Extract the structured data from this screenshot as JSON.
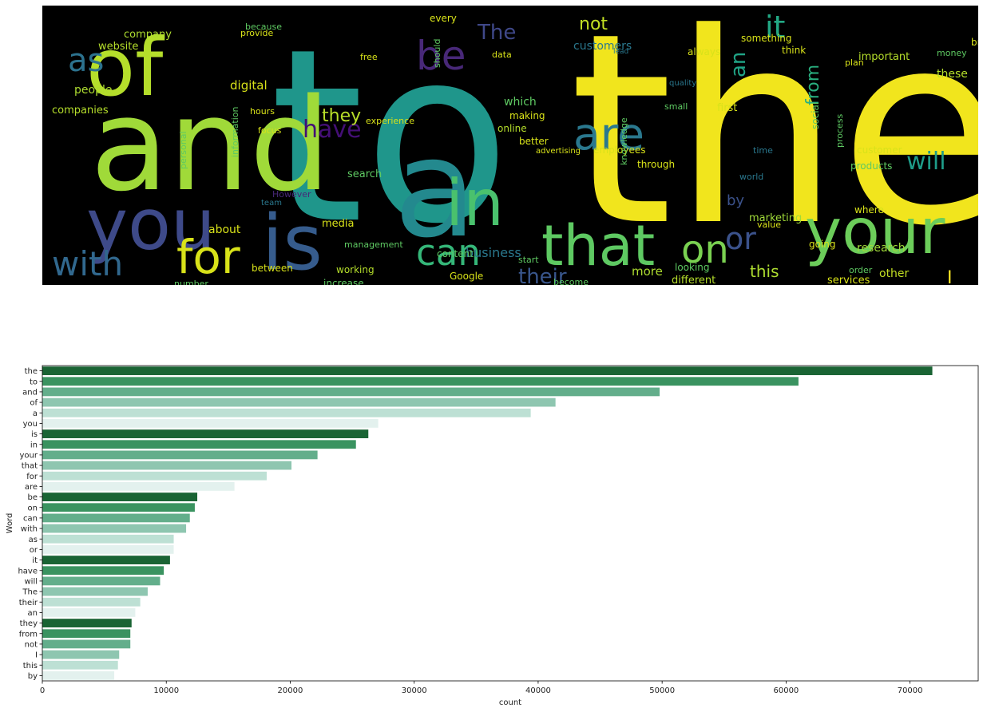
{
  "chart_data": [
    {
      "type": "wordcloud",
      "background": "#000000",
      "colormap": [
        "#440154",
        "#3b528b",
        "#21918c",
        "#5ec962",
        "#fde725"
      ],
      "words": [
        {
          "text": "the",
          "weight": 71800,
          "color": "#f1e51d"
        },
        {
          "text": "to",
          "weight": 61000,
          "color": "#1f968b"
        },
        {
          "text": "and",
          "weight": 49800,
          "color": "#a0da39"
        },
        {
          "text": "of",
          "weight": 41400,
          "color": "#b5de2b"
        },
        {
          "text": "a",
          "weight": 39400,
          "color": "#23898e"
        },
        {
          "text": "you",
          "weight": 27100,
          "color": "#3e4a89"
        },
        {
          "text": "is",
          "weight": 26300,
          "color": "#365c8d"
        },
        {
          "text": "in",
          "weight": 25300,
          "color": "#4ac16d"
        },
        {
          "text": "your",
          "weight": 22200,
          "color": "#6ccd5a"
        },
        {
          "text": "that",
          "weight": 20100,
          "color": "#5ec962"
        },
        {
          "text": "for",
          "weight": 18100,
          "color": "#d8e219"
        },
        {
          "text": "are",
          "weight": 15500,
          "color": "#2a788e"
        },
        {
          "text": "be",
          "weight": 12500,
          "color": "#482878"
        },
        {
          "text": "on",
          "weight": 12300,
          "color": "#7ad151"
        },
        {
          "text": "can",
          "weight": 11900,
          "color": "#35b779"
        },
        {
          "text": "with",
          "weight": 11600,
          "color": "#31688e"
        },
        {
          "text": "as",
          "weight": 10600,
          "color": "#2c728e"
        },
        {
          "text": "or",
          "weight": 10600,
          "color": "#3b528b"
        },
        {
          "text": "it",
          "weight": 10300,
          "color": "#22a884"
        },
        {
          "text": "have",
          "weight": 9800,
          "color": "#440f76"
        },
        {
          "text": "will",
          "weight": 9500,
          "color": "#1e9c89"
        },
        {
          "text": "The",
          "weight": 8500,
          "color": "#3f4889"
        },
        {
          "text": "their",
          "weight": 7900,
          "color": "#39568c"
        },
        {
          "text": "an",
          "weight": 7500,
          "color": "#20a486"
        },
        {
          "text": "they",
          "weight": 7200,
          "color": "#b8de29"
        },
        {
          "text": "from",
          "weight": 7100,
          "color": "#29af7f"
        },
        {
          "text": "not",
          "weight": 7100,
          "color": "#c2df23"
        },
        {
          "text": "I",
          "weight": 6200,
          "color": "#fde725"
        },
        {
          "text": "this",
          "weight": 6100,
          "color": "#addc30"
        },
        {
          "text": "by",
          "weight": 5800,
          "color": "#3b528b"
        },
        {
          "text": "business",
          "weight": 4400,
          "color": "#2a788e"
        },
        {
          "text": "which",
          "weight": 4200,
          "color": "#5ec962"
        },
        {
          "text": "these",
          "weight": 4100,
          "color": "#b5de2b"
        },
        {
          "text": "about",
          "weight": 4000,
          "color": "#d8e219"
        },
        {
          "text": "more",
          "weight": 3900,
          "color": "#addc30"
        },
        {
          "text": "marketing",
          "weight": 3800,
          "color": "#a0da39"
        },
        {
          "text": "people",
          "weight": 3700,
          "color": "#addc30"
        },
        {
          "text": "other",
          "weight": 3600,
          "color": "#c2df23"
        },
        {
          "text": "companies",
          "weight": 3500,
          "color": "#b5de2b"
        },
        {
          "text": "customers",
          "weight": 3400,
          "color": "#2a788e"
        },
        {
          "text": "digital",
          "weight": 3300,
          "color": "#d8e219"
        },
        {
          "text": "website",
          "weight": 3200,
          "color": "#b5de2b"
        },
        {
          "text": "company",
          "weight": 3100,
          "color": "#addc30"
        },
        {
          "text": "research",
          "weight": 3000,
          "color": "#a0da39"
        },
        {
          "text": "services",
          "weight": 2900,
          "color": "#d8e219"
        },
        {
          "text": "different",
          "weight": 2800,
          "color": "#b5de2b"
        },
        {
          "text": "important",
          "weight": 2700,
          "color": "#b5de2b"
        },
        {
          "text": "something",
          "weight": 2600,
          "color": "#d8e219"
        },
        {
          "text": "working",
          "weight": 2500,
          "color": "#b5de2b"
        },
        {
          "text": "Google",
          "weight": 2400,
          "color": "#d8e219"
        },
        {
          "text": "content",
          "weight": 2400,
          "color": "#5ec962"
        },
        {
          "text": "online",
          "weight": 2300,
          "color": "#b5de2b"
        },
        {
          "text": "search",
          "weight": 2300,
          "color": "#5ec962"
        },
        {
          "text": "social",
          "weight": 2200,
          "color": "#5ec962"
        },
        {
          "text": "products",
          "weight": 2200,
          "color": "#5ec962"
        },
        {
          "text": "customer",
          "weight": 2100,
          "color": "#d8e219"
        },
        {
          "text": "always",
          "weight": 2100,
          "color": "#d8e219"
        },
        {
          "text": "between",
          "weight": 2000,
          "color": "#d8e219"
        },
        {
          "text": "increase",
          "weight": 2000,
          "color": "#5ec962"
        },
        {
          "text": "number",
          "weight": 1900,
          "color": "#5ec962"
        },
        {
          "text": "looking",
          "weight": 1900,
          "color": "#5ec962"
        },
        {
          "text": "However",
          "weight": 1900,
          "color": "#482878"
        },
        {
          "text": "personal",
          "weight": 1800,
          "color": "#5ec962"
        },
        {
          "text": "employees",
          "weight": 1800,
          "color": "#d8e219"
        },
        {
          "text": "knowledge",
          "weight": 1800,
          "color": "#5ec962"
        },
        {
          "text": "management",
          "weight": 1700,
          "color": "#5ec962"
        },
        {
          "text": "information",
          "weight": 1700,
          "color": "#5ec962"
        },
        {
          "text": "experience",
          "weight": 1600,
          "color": "#d8e219"
        },
        {
          "text": "advertising",
          "weight": 1500,
          "color": "#d8e219"
        },
        {
          "text": "media",
          "weight": 1500,
          "color": "#d8e219"
        },
        {
          "text": "first",
          "weight": 1500,
          "color": "#d8e219"
        },
        {
          "text": "become",
          "weight": 1400,
          "color": "#5ec962"
        },
        {
          "text": "should",
          "weight": 1400,
          "color": "#5ec962"
        },
        {
          "text": "provide",
          "weight": 1400,
          "color": "#d8e219"
        },
        {
          "text": "because",
          "weight": 1400,
          "color": "#5ec962"
        },
        {
          "text": "making",
          "weight": 1300,
          "color": "#d8e219"
        },
        {
          "text": "better",
          "weight": 1300,
          "color": "#d8e219"
        },
        {
          "text": "through",
          "weight": 1300,
          "color": "#d8e219"
        },
        {
          "text": "money",
          "weight": 1300,
          "color": "#5ec962"
        },
        {
          "text": "brand",
          "weight": 1300,
          "color": "#d8e219"
        },
        {
          "text": "process",
          "weight": 1200,
          "color": "#5ec962"
        },
        {
          "text": "where",
          "weight": 1200,
          "color": "#d8e219"
        },
        {
          "text": "going",
          "weight": 1200,
          "color": "#d8e219"
        },
        {
          "text": "think",
          "weight": 1200,
          "color": "#d8e219"
        },
        {
          "text": "every",
          "weight": 1200,
          "color": "#d8e219"
        },
        {
          "text": "start",
          "weight": 1100,
          "color": "#5ec962"
        },
        {
          "text": "sales",
          "weight": 1100,
          "color": "#d8e219"
        },
        {
          "text": "small",
          "weight": 1100,
          "color": "#5ec962"
        },
        {
          "text": "data",
          "weight": 1100,
          "color": "#d8e219"
        },
        {
          "text": "quality",
          "weight": 1000,
          "color": "#2a788e"
        },
        {
          "text": "focus",
          "weight": 1000,
          "color": "#d8e219"
        },
        {
          "text": "free",
          "weight": 1000,
          "color": "#d8e219"
        },
        {
          "text": "hours",
          "weight": 1000,
          "color": "#d8e219"
        },
        {
          "text": "lead",
          "weight": 900,
          "color": "#2a788e"
        },
        {
          "text": "time",
          "weight": 900,
          "color": "#2a788e"
        },
        {
          "text": "order",
          "weight": 900,
          "color": "#5ec962"
        },
        {
          "text": "team",
          "weight": 900,
          "color": "#2a788e"
        },
        {
          "text": "plan",
          "weight": 900,
          "color": "#d8e219"
        },
        {
          "text": "world",
          "weight": 900,
          "color": "#2a788e"
        },
        {
          "text": "value",
          "weight": 900,
          "color": "#d8e219"
        }
      ]
    },
    {
      "type": "bar",
      "orientation": "horizontal",
      "categories": [
        "the",
        "to",
        "and",
        "of",
        "a",
        "you",
        "is",
        "in",
        "your",
        "that",
        "for",
        "are",
        "be",
        "on",
        "can",
        "with",
        "as",
        "or",
        "it",
        "have",
        "will",
        "The",
        "their",
        "an",
        "they",
        "from",
        "not",
        "I",
        "this",
        "by"
      ],
      "values": [
        71800,
        61000,
        49800,
        41400,
        39400,
        27100,
        26300,
        25300,
        22200,
        20100,
        18100,
        15500,
        12500,
        12300,
        11900,
        11600,
        10600,
        10600,
        10300,
        9800,
        9500,
        8500,
        7900,
        7500,
        7200,
        7100,
        7100,
        6200,
        6100,
        5800
      ],
      "palette": [
        "#1a6434",
        "#3a9360",
        "#63ae8b",
        "#8ec6b0",
        "#bde0d4",
        "#e3f1ee"
      ],
      "xlabel": "count",
      "ylabel": "Word",
      "xlim": [
        0,
        75500
      ],
      "xticks": [
        0,
        10000,
        20000,
        30000,
        40000,
        50000,
        60000,
        70000
      ],
      "xtick_labels": [
        "0",
        "10000",
        "20000",
        "30000",
        "40000",
        "50000",
        "60000",
        "70000"
      ],
      "grid": false
    }
  ]
}
